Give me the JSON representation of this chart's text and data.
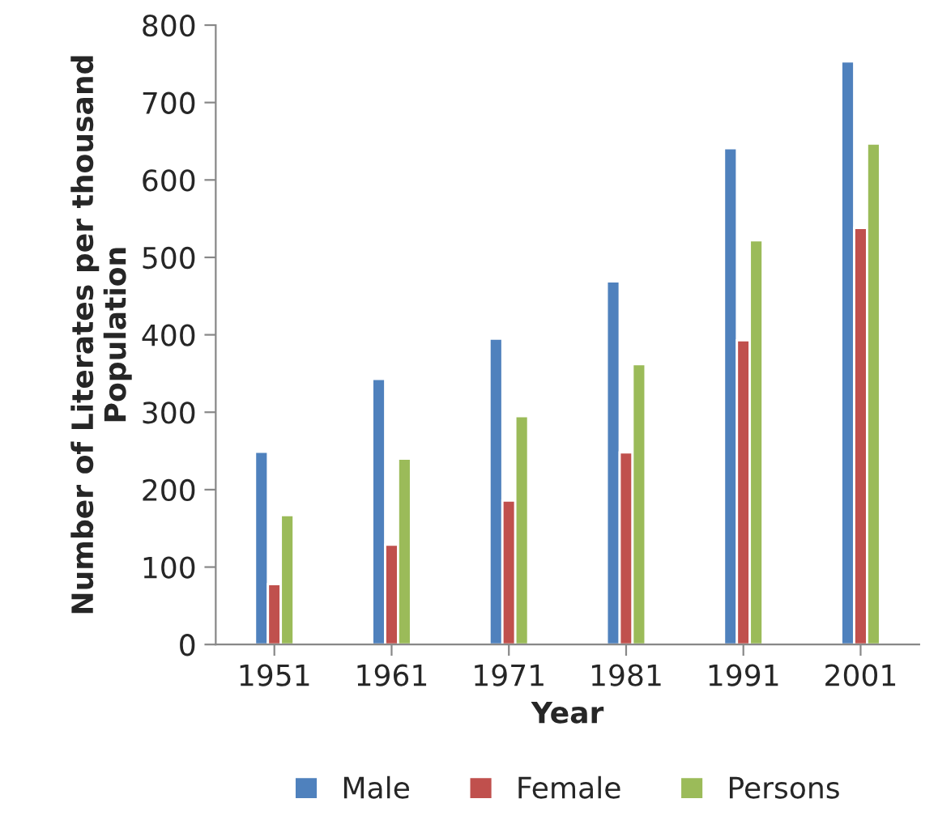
{
  "chart_data": {
    "type": "bar",
    "xlabel": "Year",
    "ylabel": "Number of Literates per thousand\nPopulation",
    "categories": [
      "1951",
      "1961",
      "1971",
      "1981",
      "1991",
      "2001"
    ],
    "series": [
      {
        "name": "Male",
        "color": "#4f81bd",
        "values": [
          249,
          343,
          395,
          469,
          641,
          753
        ]
      },
      {
        "name": "Female",
        "color": "#c0504d",
        "values": [
          78,
          129,
          186,
          248,
          393,
          538
        ]
      },
      {
        "name": "Persons",
        "color": "#9bbb59",
        "values": [
          167,
          240,
          295,
          362,
          522,
          647
        ]
      }
    ],
    "ylim": [
      0,
      800
    ],
    "yticks": [
      0,
      100,
      200,
      300,
      400,
      500,
      600,
      700,
      800
    ],
    "grid": false,
    "legend": "bottom"
  }
}
